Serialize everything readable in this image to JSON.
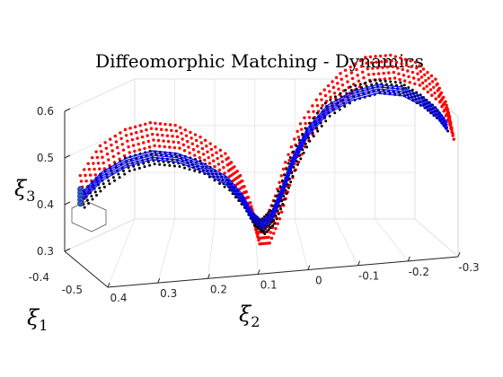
{
  "chart_data": {
    "type": "scatter",
    "title": "Diffeomorphic Matching - Dynamics",
    "xlabel": {
      "symbol": "ξ",
      "subscript": "1"
    },
    "ylabel": {
      "symbol": "ξ",
      "subscript": "2"
    },
    "zlabel": {
      "symbol": "ξ",
      "subscript": "3"
    },
    "xlim": [
      -0.5,
      -0.4
    ],
    "ylim": [
      -0.3,
      0.4
    ],
    "zlim": [
      0.3,
      0.6
    ],
    "x_ticks": [
      "-0.5",
      "-0.4"
    ],
    "y_ticks": [
      "0.4",
      "0.3",
      "0.2",
      "0.1",
      "0",
      "-0.1",
      "-0.2",
      "-0.3"
    ],
    "z_ticks": [
      "0.3",
      "0.4",
      "0.5",
      "0.6"
    ],
    "grid": true,
    "projection": "3d",
    "series": [
      {
        "color": "#ff0000",
        "style": "dots",
        "points_y_z": [
          [
            0.44,
            0.43
          ],
          [
            0.4,
            0.49
          ],
          [
            0.35,
            0.52
          ],
          [
            0.3,
            0.53
          ],
          [
            0.25,
            0.52
          ],
          [
            0.2,
            0.49
          ],
          [
            0.15,
            0.45
          ],
          [
            0.12,
            0.4
          ],
          [
            0.1,
            0.34
          ],
          [
            0.09,
            0.3
          ],
          [
            0.07,
            0.3
          ],
          [
            0.05,
            0.35
          ],
          [
            0.03,
            0.42
          ],
          [
            0.0,
            0.5
          ],
          [
            -0.04,
            0.56
          ],
          [
            -0.08,
            0.6
          ],
          [
            -0.13,
            0.63
          ],
          [
            -0.18,
            0.63
          ],
          [
            -0.23,
            0.61
          ],
          [
            -0.27,
            0.57
          ],
          [
            -0.29,
            0.52
          ],
          [
            -0.3,
            0.48
          ]
        ]
      },
      {
        "color": "#000000",
        "style": "dots",
        "points_y_z": [
          [
            0.44,
            0.4
          ],
          [
            0.4,
            0.44
          ],
          [
            0.35,
            0.47
          ],
          [
            0.3,
            0.48
          ],
          [
            0.25,
            0.47
          ],
          [
            0.2,
            0.45
          ],
          [
            0.15,
            0.41
          ],
          [
            0.12,
            0.37
          ],
          [
            0.1,
            0.33
          ],
          [
            0.08,
            0.31
          ],
          [
            0.06,
            0.33
          ],
          [
            0.04,
            0.38
          ],
          [
            0.02,
            0.44
          ],
          [
            -0.01,
            0.5
          ],
          [
            -0.05,
            0.55
          ],
          [
            -0.1,
            0.58
          ],
          [
            -0.15,
            0.59
          ],
          [
            -0.2,
            0.58
          ],
          [
            -0.24,
            0.55
          ],
          [
            -0.27,
            0.52
          ],
          [
            -0.29,
            0.49
          ]
        ]
      },
      {
        "color": "#0000ff",
        "style": "lines",
        "points_y_z": [
          [
            0.44,
            0.41
          ],
          [
            0.4,
            0.45
          ],
          [
            0.35,
            0.475
          ],
          [
            0.3,
            0.485
          ],
          [
            0.25,
            0.475
          ],
          [
            0.2,
            0.45
          ],
          [
            0.15,
            0.415
          ],
          [
            0.12,
            0.375
          ],
          [
            0.1,
            0.335
          ],
          [
            0.08,
            0.315
          ],
          [
            0.06,
            0.335
          ],
          [
            0.04,
            0.385
          ],
          [
            0.02,
            0.445
          ],
          [
            -0.01,
            0.505
          ],
          [
            -0.05,
            0.55
          ],
          [
            -0.1,
            0.575
          ],
          [
            -0.15,
            0.585
          ],
          [
            -0.2,
            0.575
          ],
          [
            -0.24,
            0.55
          ],
          [
            -0.27,
            0.52
          ],
          [
            -0.29,
            0.49
          ]
        ]
      }
    ]
  }
}
